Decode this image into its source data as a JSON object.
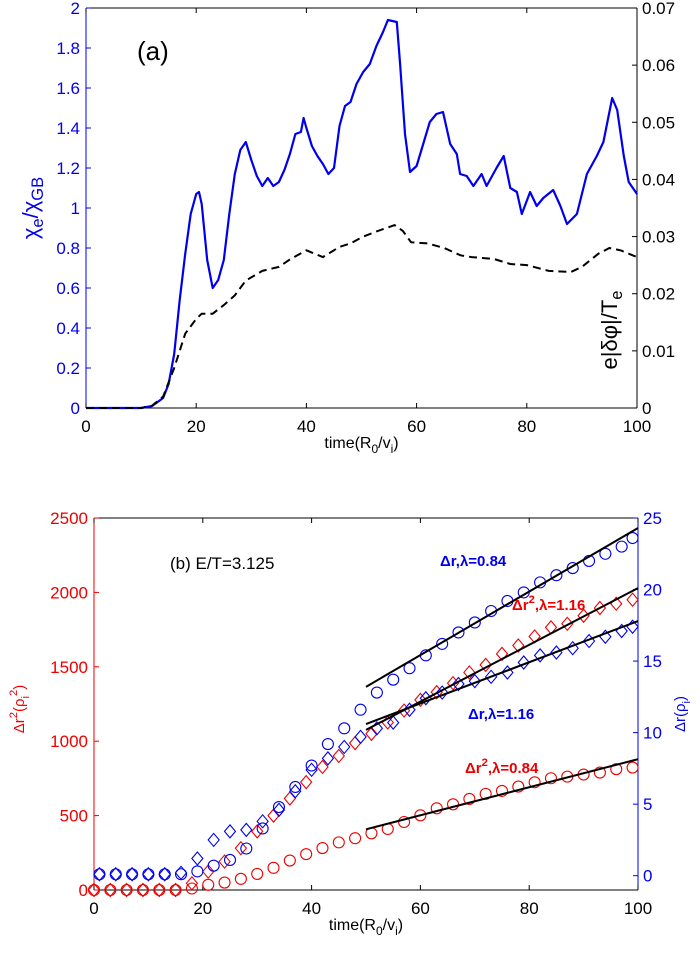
{
  "chart_data": [
    {
      "type": "line",
      "panel_label": "(a)",
      "xlabel": "time(R_{0}/v_{i})",
      "ylabel_left": "χ_{e}/χ_{GB}",
      "ylabel_right": "e|δφ|/T_{e}",
      "xlim": [
        0,
        100
      ],
      "ylim_left": [
        0,
        2
      ],
      "ylim_right": [
        0,
        0.07
      ],
      "xticks": [
        "0",
        "20",
        "40",
        "60",
        "80",
        "100"
      ],
      "yticks_left": [
        "0",
        "0.2",
        "0.4",
        "0.6",
        "0.8",
        "1",
        "1.2",
        "1.4",
        "1.6",
        "1.8",
        "2"
      ],
      "yticks_right": [
        "0",
        "0.01",
        "0.02",
        "0.03",
        "0.04",
        "0.05",
        "0.06",
        "0.07"
      ],
      "grid": false,
      "colors": {
        "left_axis": "#0000ee",
        "right_axis": "#000000"
      },
      "series": [
        {
          "axis": "left",
          "style": "solid",
          "color": "#0000ee",
          "x": [
            0,
            10,
            12,
            14,
            15,
            16,
            17,
            18,
            19,
            20,
            20.5,
            21,
            22,
            23,
            24,
            25,
            26,
            27,
            28,
            29,
            30,
            31,
            32,
            33,
            34,
            35,
            36,
            37,
            38,
            39,
            39.5,
            40,
            41,
            42,
            43,
            44,
            45,
            46,
            47,
            48,
            49.1,
            50.3,
            51.5,
            52.7,
            53.9,
            54.8,
            56.4,
            57,
            57.9,
            58.8,
            60,
            61.2,
            62.4,
            63.6,
            64.8,
            66.1,
            67.3,
            67.9,
            69.1,
            70.3,
            71.8,
            72.7,
            74.5,
            75.8,
            77,
            78.2,
            79.1,
            80.6,
            81.8,
            83,
            84.8,
            86.1,
            87.3,
            89.1,
            90.9,
            92.7,
            93.9,
            95.5,
            96.4,
            97.6,
            98.5,
            100
          ],
          "y": [
            0,
            0,
            0.01,
            0.05,
            0.12,
            0.27,
            0.54,
            0.77,
            0.97,
            1.07,
            1.08,
            1.02,
            0.74,
            0.6,
            0.64,
            0.74,
            0.97,
            1.17,
            1.29,
            1.33,
            1.24,
            1.16,
            1.11,
            1.15,
            1.11,
            1.13,
            1.19,
            1.27,
            1.37,
            1.38,
            1.45,
            1.4,
            1.31,
            1.26,
            1.22,
            1.17,
            1.2,
            1.41,
            1.51,
            1.53,
            1.62,
            1.68,
            1.72,
            1.81,
            1.88,
            1.94,
            1.93,
            1.72,
            1.37,
            1.18,
            1.21,
            1.32,
            1.43,
            1.47,
            1.48,
            1.32,
            1.27,
            1.17,
            1.16,
            1.11,
            1.17,
            1.11,
            1.2,
            1.26,
            1.1,
            1.08,
            0.97,
            1.08,
            1.01,
            1.05,
            1.09,
            1.01,
            0.92,
            0.97,
            1.17,
            1.26,
            1.33,
            1.55,
            1.49,
            1.26,
            1.13,
            1.07
          ]
        },
        {
          "axis": "right",
          "style": "dashed",
          "color": "#000000",
          "x": [
            0,
            10,
            12,
            14,
            16,
            18,
            20,
            21,
            23,
            25,
            27,
            29,
            32,
            35,
            37,
            40,
            43,
            46,
            48,
            50.3,
            53,
            56,
            57.5,
            59,
            62,
            65,
            68,
            70,
            74,
            77,
            80,
            84,
            88,
            90,
            93,
            95,
            97,
            100
          ],
          "y": [
            0,
            0,
            0.0004,
            0.002,
            0.007,
            0.013,
            0.0156,
            0.0165,
            0.0165,
            0.018,
            0.0197,
            0.0223,
            0.024,
            0.0247,
            0.026,
            0.0276,
            0.0264,
            0.0282,
            0.0288,
            0.03,
            0.031,
            0.032,
            0.031,
            0.029,
            0.0288,
            0.028,
            0.0267,
            0.0264,
            0.0261,
            0.0252,
            0.025,
            0.024,
            0.0238,
            0.0247,
            0.027,
            0.028,
            0.0276,
            0.0264
          ]
        }
      ]
    },
    {
      "type": "scatter",
      "panel_label": "(b) E/T=3.125",
      "xlabel": "time(R_{0}/v_{i})",
      "ylabel_left": "Δr^{2}(ρ_{i}^{2})",
      "ylabel_right": "Δr(ρ_{i})",
      "xlim": [
        0,
        100
      ],
      "ylim_left": [
        0,
        2500
      ],
      "ylim_right": [
        -1,
        25
      ],
      "xticks": [
        "0",
        "20",
        "40",
        "60",
        "80",
        "100"
      ],
      "yticks_left": [
        "0",
        "500",
        "1000",
        "1500",
        "2000",
        "2500"
      ],
      "yticks_right": [
        "0",
        "5",
        "10",
        "15",
        "20",
        "25"
      ],
      "grid": false,
      "colors": {
        "left_axis": "#ee0000",
        "right_axis": "#0000ee"
      },
      "series": [
        {
          "axis": "left",
          "marker": "circle",
          "color": "#ee0000",
          "x": [
            0,
            3,
            6,
            9,
            12,
            15,
            18,
            21,
            24,
            27,
            30,
            33,
            36,
            39,
            42,
            45,
            48,
            51,
            54,
            57,
            60,
            63,
            66,
            69,
            72,
            75,
            78,
            81,
            84,
            87,
            90,
            93,
            96,
            99
          ],
          "y": [
            0,
            0,
            0,
            0,
            0,
            0,
            10,
            35,
            50,
            75,
            108,
            149,
            198,
            241,
            282,
            320,
            348,
            381,
            410,
            457,
            502,
            549,
            576,
            612,
            646,
            666,
            695,
            724,
            751,
            762,
            776,
            789,
            812,
            823
          ]
        },
        {
          "axis": "left",
          "marker": "diamond",
          "color": "#ee0000",
          "x": [
            0,
            3,
            6,
            9,
            12,
            15,
            18,
            21,
            24,
            27,
            30,
            33,
            36,
            39,
            42,
            45,
            48,
            51,
            54,
            57,
            60,
            63,
            66,
            69,
            72,
            75,
            78,
            81,
            84,
            87,
            90,
            93,
            96,
            99
          ],
          "y": [
            0,
            0,
            0,
            0,
            0,
            0,
            45,
            124,
            191,
            281,
            394,
            500,
            615,
            725,
            827,
            901,
            987,
            1049,
            1126,
            1206,
            1278,
            1330,
            1390,
            1462,
            1513,
            1587,
            1643,
            1704,
            1765,
            1789,
            1843,
            1895,
            1924,
            1951
          ]
        },
        {
          "axis": "right",
          "marker": "circle",
          "color": "#0000ee",
          "x": [
            1,
            4,
            7,
            10,
            13,
            16,
            19,
            22,
            25,
            28,
            31,
            34,
            37,
            40,
            43,
            46,
            49,
            52,
            55,
            58,
            61,
            64,
            67,
            70,
            73,
            76,
            79,
            82,
            85,
            88,
            91,
            94,
            97,
            99
          ],
          "y": [
            0.1,
            0.1,
            0.1,
            0.1,
            0.1,
            0.1,
            0.3,
            0.7,
            1.1,
            1.9,
            3.3,
            4.8,
            6.2,
            7.7,
            9.2,
            10.3,
            11.6,
            12.8,
            13.7,
            14.5,
            15.4,
            16.2,
            17.0,
            17.7,
            18.5,
            19.2,
            19.8,
            20.5,
            21.0,
            21.5,
            22.0,
            22.5,
            23.0,
            23.6
          ]
        },
        {
          "axis": "right",
          "marker": "diamond",
          "color": "#0000ee",
          "x": [
            1,
            4,
            7,
            10,
            13,
            16,
            19,
            22,
            25,
            28,
            31,
            34,
            37,
            40,
            43,
            46,
            49,
            52,
            55,
            58,
            61,
            64,
            67,
            70,
            73,
            76,
            79,
            82,
            85,
            88,
            91,
            94,
            97,
            99
          ],
          "y": [
            0.1,
            0.1,
            0.1,
            0.1,
            0.1,
            0.2,
            1.2,
            2.5,
            3.1,
            3.2,
            3.8,
            4.6,
            5.9,
            7.4,
            8.2,
            9.0,
            9.7,
            10.3,
            10.7,
            11.6,
            12.4,
            12.8,
            13.4,
            13.6,
            13.9,
            14.2,
            14.9,
            15.4,
            15.6,
            15.9,
            16.4,
            16.7,
            17.1,
            17.4
          ]
        }
      ],
      "fit_lines": [
        {
          "axis": "right",
          "x": [
            50,
            100
          ],
          "y": [
            13.2,
            24.3
          ],
          "label": "Δr,λ=0.84",
          "label_color": "#0000ee"
        },
        {
          "axis": "left",
          "x": [
            50,
            100
          ],
          "y": [
            1076,
            2029
          ],
          "label": "Δr^{2},λ=1.16",
          "label_color": "#ee0000"
        },
        {
          "axis": "right",
          "x": [
            50,
            100
          ],
          "y": [
            10.6,
            17.8
          ],
          "label": "Δr,λ=1.16",
          "label_color": "#0000ee"
        },
        {
          "axis": "left",
          "x": [
            50,
            100
          ],
          "y": [
            408,
            879
          ],
          "label": "Δr^{2},λ=0.84",
          "label_color": "#ee0000"
        }
      ]
    }
  ]
}
